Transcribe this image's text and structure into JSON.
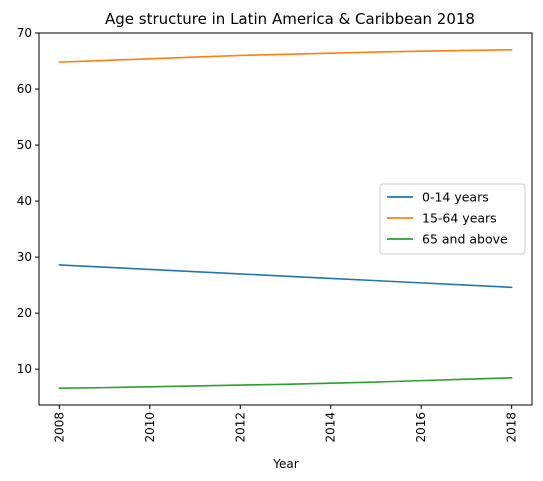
{
  "chart_data": {
    "type": "line",
    "title": "Age structure in Latin America & Caribbean 2018",
    "xlabel": "Year",
    "ylabel": "",
    "x": [
      2008,
      2009,
      2010,
      2011,
      2012,
      2013,
      2014,
      2015,
      2016,
      2017,
      2018
    ],
    "xticks": [
      2008,
      2010,
      2012,
      2014,
      2016,
      2018
    ],
    "yticks": [
      10,
      20,
      30,
      40,
      50,
      60,
      70
    ],
    "xlim": [
      2007.55,
      2018.45
    ],
    "ylim": [
      3.6,
      70
    ],
    "grid": false,
    "legend_position": "center-right",
    "series": [
      {
        "name": "0-14 years",
        "color": "#1f77b4",
        "values": [
          28.6,
          28.2,
          27.8,
          27.4,
          27.0,
          26.6,
          26.2,
          25.8,
          25.4,
          25.0,
          24.6
        ]
      },
      {
        "name": "15-64 years",
        "color": "#ff7f0e",
        "values": [
          64.8,
          65.1,
          65.4,
          65.7,
          66.0,
          66.2,
          66.4,
          66.6,
          66.75,
          66.88,
          67.0
        ]
      },
      {
        "name": "65 and above",
        "color": "#2ca02c",
        "values": [
          6.6,
          6.7,
          6.85,
          7.0,
          7.15,
          7.3,
          7.5,
          7.7,
          7.95,
          8.2,
          8.45
        ]
      }
    ]
  }
}
